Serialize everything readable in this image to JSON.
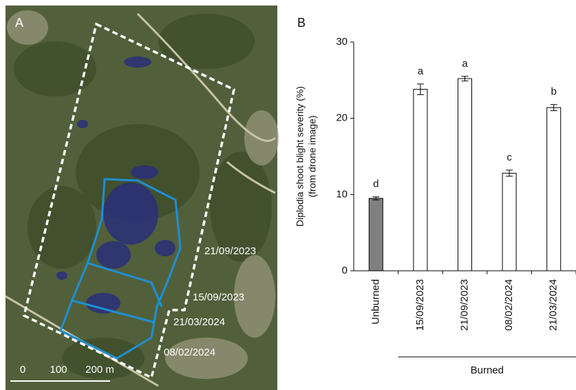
{
  "map": {
    "label": "A",
    "plot_labels": [
      "21/09/2023",
      "15/09/2023",
      "21/03/2024",
      "08/02/2024"
    ],
    "scale_labels": [
      "0",
      "100",
      "200 m"
    ]
  },
  "chart_data": {
    "type": "bar",
    "panel_label": "B",
    "ylabel": [
      "Diplodia shoot blight severity (%)",
      "(from drone image)"
    ],
    "categories": [
      "Unburned",
      "15/09/2023",
      "21/09/2023",
      "08/02/2024",
      "21/03/2024"
    ],
    "values": [
      9.5,
      23.8,
      25.2,
      12.8,
      21.4
    ],
    "errors": [
      0.2,
      0.7,
      0.3,
      0.4,
      0.4
    ],
    "annotations": [
      "d",
      "a",
      "a",
      "c",
      "b"
    ],
    "colors": [
      "#808080",
      "#ffffff",
      "#ffffff",
      "#ffffff",
      "#ffffff"
    ],
    "group_label": "Burned",
    "ylim": [
      0,
      30
    ],
    "yticks": [
      0,
      10,
      20,
      30
    ]
  }
}
